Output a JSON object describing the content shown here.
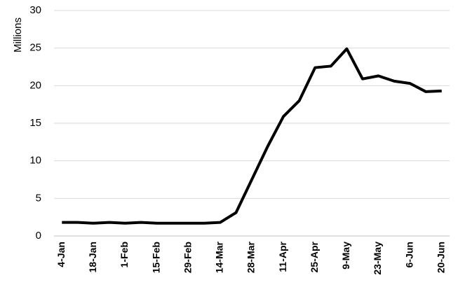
{
  "chart_data": {
    "type": "line",
    "y_label": "Millions",
    "categories": [
      "4-Jan",
      null,
      "18-Jan",
      null,
      "1-Feb",
      null,
      "15-Feb",
      null,
      "29-Feb",
      null,
      "14-Mar",
      null,
      "28-Mar",
      null,
      "11-Apr",
      null,
      "25-Apr",
      null,
      "9-May",
      null,
      "23-May",
      null,
      "6-Jun",
      null,
      "20-Jun"
    ],
    "values": [
      1.8,
      1.8,
      1.7,
      1.8,
      1.7,
      1.8,
      1.7,
      1.7,
      1.7,
      1.7,
      1.8,
      3.1,
      7.5,
      11.9,
      15.9,
      18,
      22.4,
      22.6,
      24.9,
      20.9,
      21.3,
      20.6,
      20.3,
      19.2,
      19.3
    ],
    "color": "#000000",
    "ylim": [
      0,
      30
    ],
    "yticks": [
      0,
      5,
      10,
      15,
      20,
      25,
      30
    ],
    "grid": true
  }
}
